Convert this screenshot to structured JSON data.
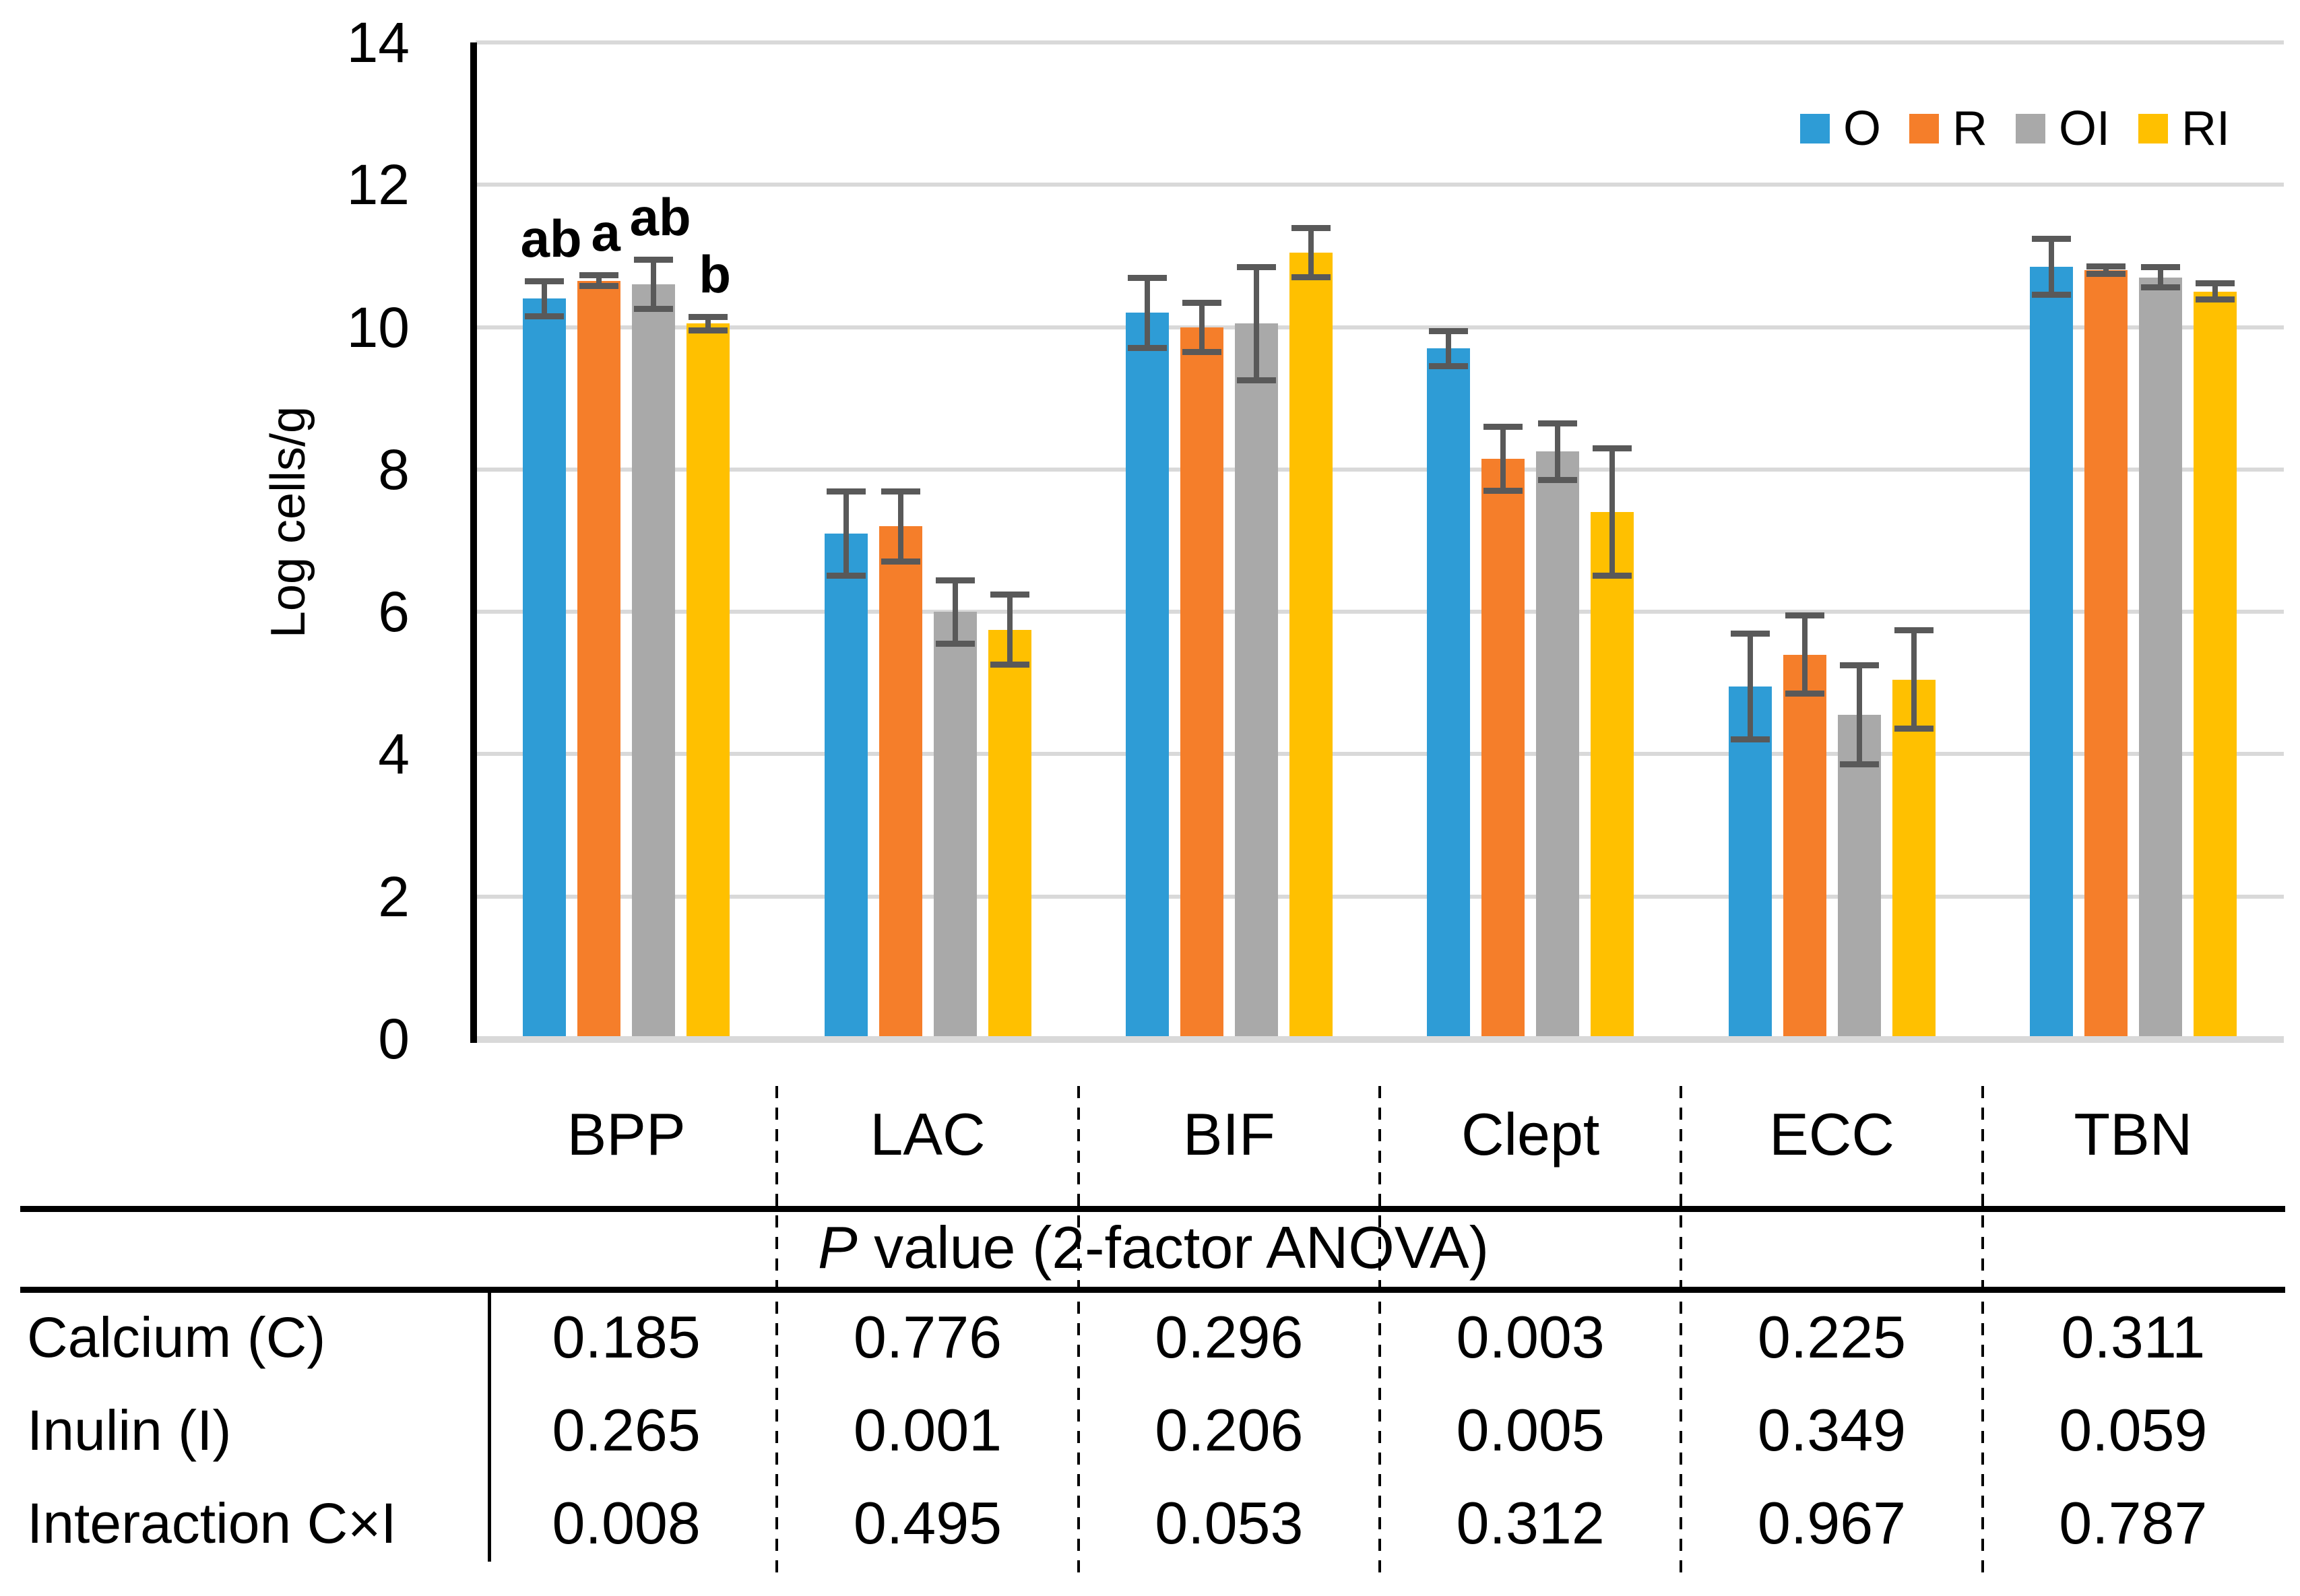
{
  "figure": {
    "y_axis_title": "Log cells/g"
  },
  "chart_data": {
    "type": "bar",
    "title": "",
    "xlabel": "",
    "ylabel": "Log cells/g",
    "ylim": [
      0,
      14
    ],
    "yticks": [
      0,
      2,
      4,
      6,
      8,
      10,
      12,
      14
    ],
    "grid": true,
    "legend_position": "top-right",
    "categories": [
      "BPP",
      "LAC",
      "BIF",
      "Clept",
      "ECC",
      "TBN"
    ],
    "series": [
      {
        "name": "O",
        "color": "#2E9CD6",
        "values": [
          10.4,
          7.1,
          10.2,
          9.7,
          4.95,
          10.85
        ],
        "errors": [
          0.25,
          0.6,
          0.5,
          0.25,
          0.75,
          0.4
        ]
      },
      {
        "name": "R",
        "color": "#F57E2A",
        "values": [
          10.65,
          7.2,
          10.0,
          8.15,
          5.4,
          10.8
        ],
        "errors": [
          0.08,
          0.5,
          0.35,
          0.45,
          0.55,
          0.06
        ]
      },
      {
        "name": "OI",
        "color": "#A9A9A9",
        "values": [
          10.6,
          6.0,
          10.05,
          8.25,
          4.55,
          10.7
        ],
        "errors": [
          0.35,
          0.45,
          0.8,
          0.4,
          0.7,
          0.15
        ]
      },
      {
        "name": "RI",
        "color": "#FFC000",
        "values": [
          10.05,
          5.75,
          11.05,
          7.4,
          5.05,
          10.5
        ],
        "errors": [
          0.1,
          0.5,
          0.35,
          0.9,
          0.7,
          0.12
        ]
      }
    ],
    "significance_letters": [
      [
        "ab",
        "a",
        "ab",
        "b"
      ],
      null,
      null,
      null,
      null,
      null
    ],
    "error_bar_color": "#595959",
    "gridline_color": "#D9D9D9"
  },
  "table": {
    "header": {
      "italic_part": "P",
      "rest_part": " value (2-factor ANOVA)"
    },
    "rows": [
      {
        "label": "Calcium (C)",
        "values": [
          "0.185",
          "0.776",
          "0.296",
          "0.003",
          "0.225",
          "0.311"
        ]
      },
      {
        "label": "Inulin (I)",
        "values": [
          "0.265",
          "0.001",
          "0.206",
          "0.005",
          "0.349",
          "0.059"
        ]
      },
      {
        "label": "Interaction C×I",
        "values": [
          "0.008",
          "0.495",
          "0.053",
          "0.312",
          "0.967",
          "0.787"
        ]
      }
    ]
  }
}
